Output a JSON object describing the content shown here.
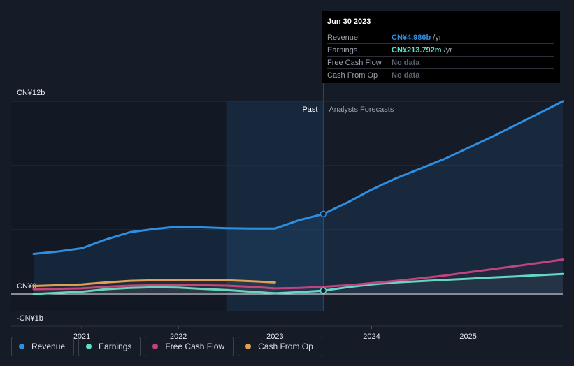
{
  "chart_data": {
    "type": "line",
    "y_unit_label": "CN¥",
    "ylim": [
      -1,
      12
    ],
    "y_tick_labels": [
      {
        "value": 12,
        "label": "CN¥12b"
      },
      {
        "value": 0,
        "label": "CN¥0"
      },
      {
        "value": -1,
        "label": "-CN¥1b"
      }
    ],
    "x_range": [
      2020.5,
      2025.98
    ],
    "x_ticks": [
      {
        "value": 2021,
        "label": "2021"
      },
      {
        "value": 2022,
        "label": "2022"
      },
      {
        "value": 2023,
        "label": "2023"
      },
      {
        "value": 2024,
        "label": "2024"
      },
      {
        "value": 2025,
        "label": "2025"
      }
    ],
    "past_label": "Past",
    "forecast_label": "Analysts Forecasts",
    "split_x": 2023.5,
    "highlight_start_x": 2022.5,
    "series": [
      {
        "name": "Revenue",
        "color": "#2e8ee0",
        "fill": true,
        "x": [
          2020.5,
          2020.75,
          2021.0,
          2021.25,
          2021.5,
          2021.75,
          2022.0,
          2022.25,
          2022.5,
          2022.75,
          2023.0,
          2023.25,
          2023.5,
          2023.75,
          2024.0,
          2024.25,
          2024.5,
          2024.75,
          2025.0,
          2025.25,
          2025.5,
          2025.75,
          2025.98
        ],
        "y": [
          2.5,
          2.65,
          2.85,
          3.4,
          3.85,
          4.05,
          4.2,
          4.15,
          4.1,
          4.08,
          4.08,
          4.6,
          4.986,
          5.7,
          6.5,
          7.2,
          7.8,
          8.4,
          9.1,
          9.8,
          10.55,
          11.3,
          12.0
        ]
      },
      {
        "name": "Earnings",
        "color": "#5fe0c8",
        "fill": false,
        "x": [
          2020.5,
          2020.75,
          2021.0,
          2021.25,
          2021.5,
          2021.75,
          2022.0,
          2022.25,
          2022.5,
          2022.75,
          2023.0,
          2023.25,
          2023.5,
          2023.75,
          2024.0,
          2024.25,
          2024.5,
          2024.75,
          2025.0,
          2025.25,
          2025.5,
          2025.75,
          2025.98
        ],
        "y": [
          0.0,
          0.08,
          0.15,
          0.3,
          0.38,
          0.42,
          0.4,
          0.32,
          0.25,
          0.15,
          0.05,
          0.12,
          0.214,
          0.42,
          0.6,
          0.72,
          0.8,
          0.88,
          0.95,
          1.03,
          1.1,
          1.18,
          1.25
        ]
      },
      {
        "name": "Free Cash Flow",
        "color": "#c2427d",
        "fill": false,
        "x": [
          2020.5,
          2020.75,
          2021.0,
          2021.25,
          2021.5,
          2021.75,
          2022.0,
          2022.25,
          2022.5,
          2022.75,
          2023.0,
          2023.25,
          2023.5,
          2023.75,
          2024.0,
          2024.25,
          2024.5,
          2024.75,
          2025.0,
          2025.25,
          2025.5,
          2025.75,
          2025.98
        ],
        "y": [
          0.3,
          0.32,
          0.35,
          0.45,
          0.52,
          0.55,
          0.56,
          0.55,
          0.52,
          0.45,
          0.35,
          0.38,
          0.45,
          0.55,
          0.68,
          0.82,
          0.98,
          1.15,
          1.35,
          1.55,
          1.75,
          1.95,
          2.15
        ]
      },
      {
        "name": "Cash From Op",
        "color": "#e0a050",
        "fill": false,
        "x": [
          2020.5,
          2020.75,
          2021.0,
          2021.25,
          2021.5,
          2021.75,
          2022.0,
          2022.25,
          2022.5,
          2022.75,
          2023.0
        ],
        "y": [
          0.5,
          0.55,
          0.6,
          0.72,
          0.82,
          0.86,
          0.88,
          0.88,
          0.86,
          0.8,
          0.72
        ]
      }
    ],
    "highlight_point": {
      "x": 2023.5
    }
  },
  "tooltip": {
    "date": "Jun 30 2023",
    "rows": [
      {
        "label": "Revenue",
        "value": "CN¥4.986b",
        "unit": "/yr",
        "color": "#2e8ee0"
      },
      {
        "label": "Earnings",
        "value": "CN¥213.792m",
        "unit": "/yr",
        "color": "#5fe0c8"
      },
      {
        "label": "Free Cash Flow",
        "value": "No data",
        "unit": "",
        "color": ""
      },
      {
        "label": "Cash From Op",
        "value": "No data",
        "unit": "",
        "color": ""
      }
    ]
  },
  "legend": [
    {
      "label": "Revenue",
      "color": "#2e8ee0"
    },
    {
      "label": "Earnings",
      "color": "#5fe0c8"
    },
    {
      "label": "Free Cash Flow",
      "color": "#c2427d"
    },
    {
      "label": "Cash From Op",
      "color": "#e0a050"
    }
  ]
}
